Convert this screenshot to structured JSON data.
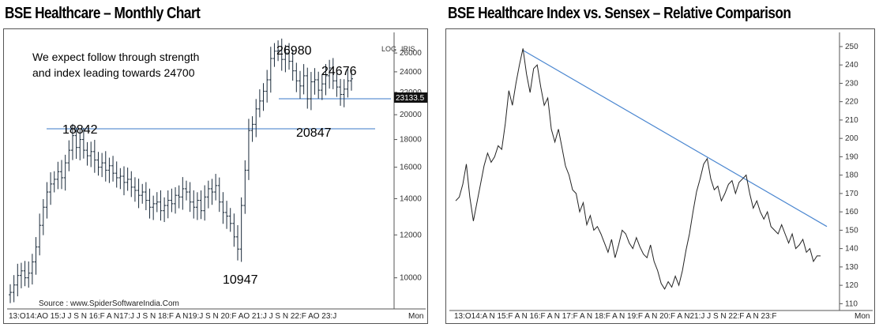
{
  "titles": {
    "left": "BSE Healthcare – Monthly Chart",
    "right": "BSE Healthcare Index vs. Sensex – Relative Comparison"
  },
  "chart_data": [
    {
      "type": "ohlc",
      "title": "BSE Healthcare – Monthly Chart",
      "scale": "log",
      "ylim": [
        9000,
        28000
      ],
      "yticks": [
        10000,
        12000,
        14000,
        16000,
        18000,
        20000,
        22000,
        24000,
        26000
      ],
      "x_labels": "13:O14:AO 15:J J S N 16:F A N17:J J S N 18:F A N19:J S N 20:F AO 21:J J S N 22:F AO 23:J",
      "axis_tags": {
        "log": "LOG",
        "iris": "IRIS",
        "period": "Mon"
      },
      "last_price": "23133.5",
      "annotations": {
        "note_line1": "We expect follow through strength",
        "note_line2": "and index leading towards 24700",
        "l18842": "18842",
        "l26980": "26980",
        "l24676": "24676",
        "l20847": "20847",
        "l10947": "10947",
        "source": "Source : www.SpiderSoftwareIndia.Com"
      },
      "levels": [
        {
          "value": 18842,
          "color": "#3a78c8"
        },
        {
          "value": 21400,
          "color": "#3a78c8"
        }
      ],
      "closes": [
        9400,
        9700,
        10100,
        10300,
        10000,
        10200,
        10700,
        11400,
        12500,
        13500,
        14400,
        14900,
        15200,
        15700,
        15300,
        16300,
        17200,
        18300,
        17400,
        18000,
        17200,
        16800,
        17100,
        16500,
        16000,
        16300,
        15800,
        16100,
        15600,
        15300,
        15400,
        15000,
        15200,
        14700,
        14500,
        14200,
        14400,
        13900,
        13500,
        13700,
        13800,
        13300,
        13600,
        13900,
        13700,
        14200,
        14100,
        14600,
        14400,
        13800,
        13500,
        13900,
        13300,
        14100,
        14600,
        14400,
        14800,
        13800,
        13200,
        13000,
        12600,
        11900,
        11300,
        13600,
        15800,
        18700,
        19200,
        20500,
        21200,
        22100,
        23200,
        25400,
        26200,
        26300,
        25300,
        26000,
        25100,
        24100,
        23100,
        22600,
        23600,
        21400,
        23000,
        23200,
        22200,
        22800,
        23600,
        24400,
        23100,
        22500,
        21800,
        22300,
        23100,
        23300
      ]
    },
    {
      "type": "line",
      "title": "BSE Healthcare Index vs. Sensex – Relative Comparison",
      "ylim": [
        108,
        256
      ],
      "yticks": [
        110,
        120,
        130,
        140,
        150,
        160,
        170,
        180,
        190,
        200,
        210,
        220,
        230,
        240,
        250
      ],
      "x_labels": "13:O14:A N 15:F A N 16:F A N 17:F A N 18:F A N 19:F A N 20:F A N21:J J S N 22:F A N 23:F",
      "axis_tags": {
        "period": "Mon"
      },
      "trendline": {
        "start": 248,
        "end": 152,
        "color": "#4a86d0"
      },
      "values": [
        166,
        168,
        175,
        186,
        168,
        155,
        165,
        175,
        185,
        192,
        187,
        190,
        196,
        194,
        208,
        226,
        218,
        230,
        240,
        249,
        235,
        225,
        238,
        240,
        228,
        218,
        222,
        205,
        198,
        205,
        195,
        185,
        180,
        172,
        170,
        160,
        165,
        153,
        158,
        150,
        152,
        148,
        143,
        138,
        145,
        135,
        142,
        150,
        148,
        143,
        140,
        146,
        141,
        137,
        135,
        142,
        133,
        128,
        121,
        118,
        122,
        119,
        125,
        120,
        128,
        139,
        148,
        160,
        171,
        178,
        186,
        189,
        178,
        172,
        174,
        166,
        170,
        175,
        177,
        170,
        176,
        178,
        180,
        170,
        162,
        166,
        160,
        156,
        160,
        152,
        150,
        148,
        153,
        148,
        143,
        148,
        140,
        142,
        145,
        138,
        140,
        133,
        136,
        136
      ]
    }
  ]
}
